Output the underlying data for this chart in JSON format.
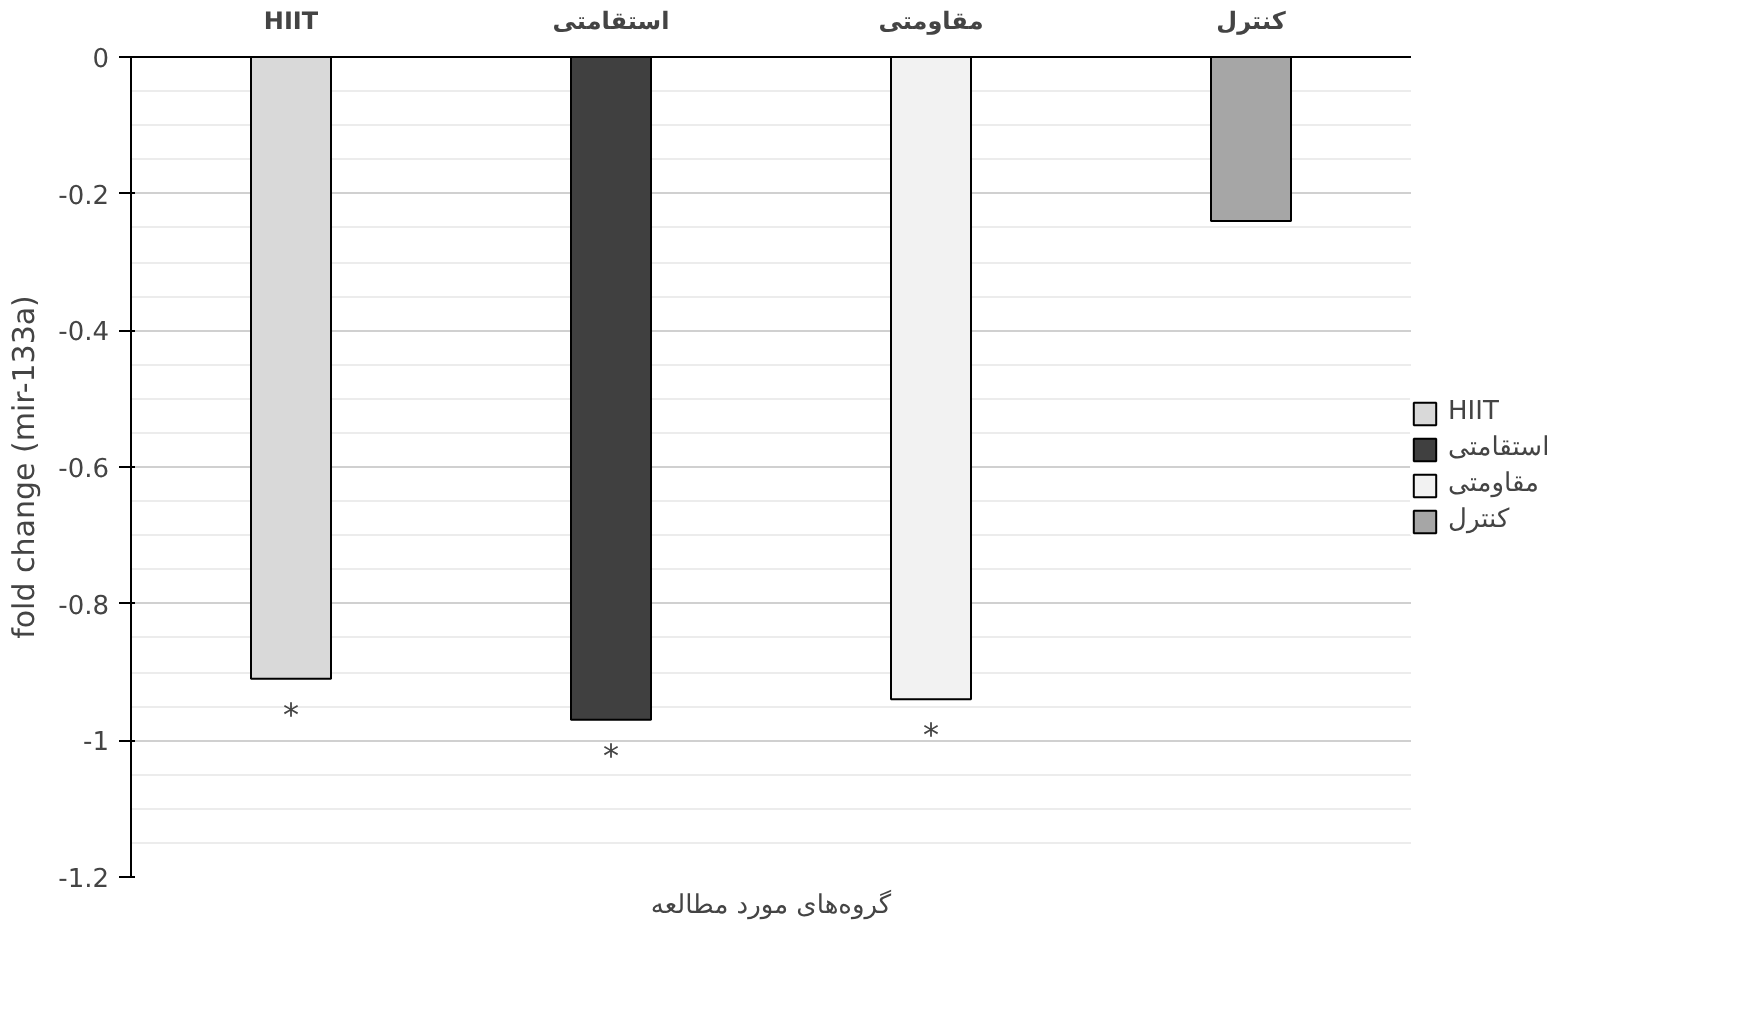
{
  "chart_data": {
    "type": "bar",
    "xlabel": "گروه‌های مورد مطالعه",
    "ylabel": "fold change (mir-133a)",
    "categories": [
      "HIIT",
      "استقامتی",
      "مقاومتی",
      "کنترل"
    ],
    "series": [
      {
        "name": "HIIT",
        "color": "#d9d9d9",
        "values": [
          -0.91,
          null,
          null,
          null
        ]
      },
      {
        "name": "استقامتی",
        "color": "#404040",
        "values": [
          null,
          -0.97,
          null,
          null
        ]
      },
      {
        "name": "مقاومتی",
        "color": "#f2f2f2",
        "values": [
          null,
          null,
          -0.94,
          null
        ]
      },
      {
        "name": "کنترل",
        "color": "#a6a6a6",
        "values": [
          null,
          null,
          null,
          -0.24
        ]
      }
    ],
    "ylim": [
      -1.2,
      0
    ],
    "yticks": [
      0,
      -0.2,
      -0.4,
      -0.6,
      -0.8,
      -1,
      -1.2
    ],
    "grid": "y",
    "legend": "right",
    "annotations": [
      "*",
      "*",
      "*"
    ]
  }
}
